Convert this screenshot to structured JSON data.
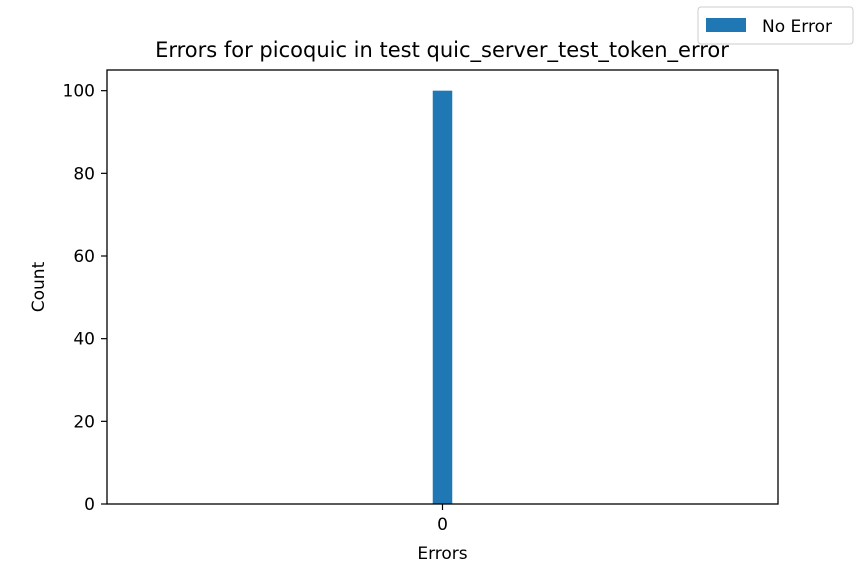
{
  "chart_data": {
    "type": "bar",
    "title": "Errors for picoquic in test quic_server_test_token_error",
    "xlabel": "Errors",
    "ylabel": "Count",
    "categories": [
      "0"
    ],
    "series": [
      {
        "name": "No Error",
        "values": [
          100
        ],
        "color": "#1f77b4"
      }
    ],
    "ylim": [
      0,
      105
    ],
    "yticks": [
      0,
      20,
      40,
      60,
      80,
      100
    ],
    "xlim": [
      -0.55,
      0.55
    ],
    "bar_width": 0.032,
    "legend_position": "top-right",
    "grid": false
  }
}
